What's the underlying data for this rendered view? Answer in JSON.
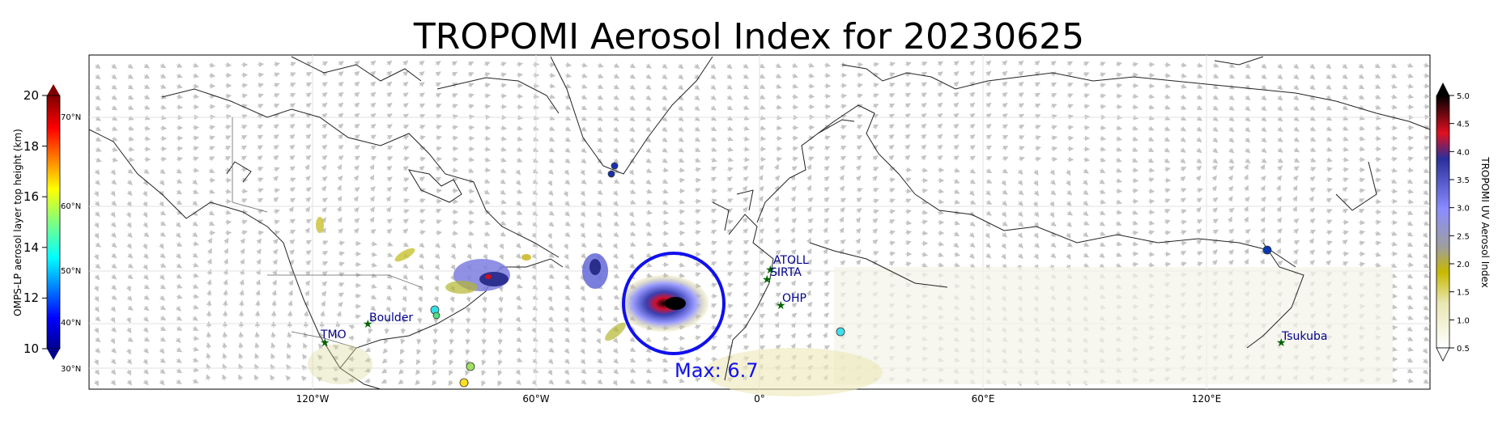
{
  "title": "TROPOMI Aerosol Index for 20230625",
  "left_colorbar": {
    "label": "OMPS-LP aerosol layer top height (km)",
    "ticks": [
      "10",
      "12",
      "14",
      "16",
      "18",
      "20"
    ],
    "lat_ticks": [
      "30°N",
      "40°N",
      "50°N",
      "60°N",
      "70°N"
    ]
  },
  "right_colorbar": {
    "label": "TROPOMI UV Aerosol Index",
    "ticks": [
      "0.5",
      "1.0",
      "1.5",
      "2.0",
      "2.5",
      "3.0",
      "3.5",
      "4.0",
      "4.5",
      "5.0"
    ]
  },
  "lon_ticks": [
    "120°W",
    "60°W",
    "0°",
    "60°E",
    "120°E"
  ],
  "sites": [
    "TMO",
    "Boulder",
    "ATOLL",
    "SIRTA",
    "OHP",
    "Tsukuba"
  ],
  "max_label": "Max: 6.7",
  "colors": {
    "max_circle": "#1010ee",
    "site_marker": "#006400",
    "site_text": "#00008b"
  }
}
